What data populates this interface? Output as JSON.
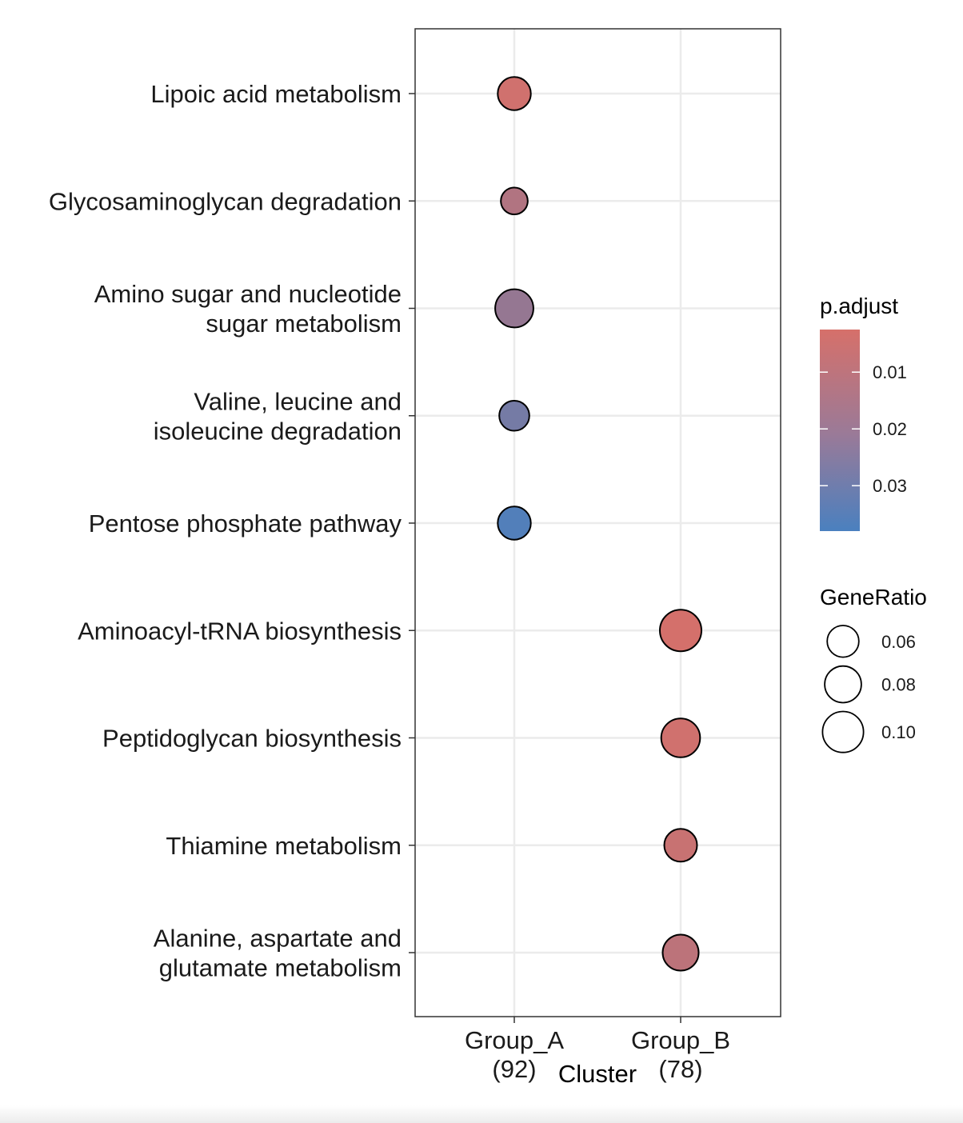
{
  "chart_data": {
    "type": "scatter",
    "xlabel": "Cluster",
    "ylabel": "",
    "clusters": [
      {
        "name": "Group_A",
        "count": "(92)"
      },
      {
        "name": "Group_B",
        "count": "(78)"
      }
    ],
    "categories": [
      "Lipoic acid metabolism",
      "Glycosaminoglycan degradation",
      "Amino sugar and nucleotide sugar metabolism",
      "Valine, leucine and isoleucine degradation",
      "Pentose phosphate pathway",
      "Aminoacyl-tRNA biosynthesis",
      "Peptidoglycan biosynthesis",
      "Thiamine metabolism",
      "Alanine, aspartate and glutamate metabolism"
    ],
    "category_labels": [
      [
        "Lipoic acid metabolism"
      ],
      [
        "Glycosaminoglycan degradation"
      ],
      [
        "Amino sugar and nucleotide",
        "sugar metabolism"
      ],
      [
        "Valine, leucine and",
        "isoleucine degradation"
      ],
      [
        "Pentose phosphate pathway"
      ],
      [
        "Aminoacyl-tRNA biosynthesis"
      ],
      [
        "Peptidoglycan biosynthesis"
      ],
      [
        "Thiamine metabolism"
      ],
      [
        "Alanine, aspartate and",
        "glutamate metabolism"
      ]
    ],
    "points": [
      {
        "category": "Lipoic acid metabolism",
        "cluster": "Group_A",
        "gene_ratio": 0.065,
        "p_adjust": 0.004
      },
      {
        "category": "Glycosaminoglycan degradation",
        "cluster": "Group_A",
        "gene_ratio": 0.043,
        "p_adjust": 0.012
      },
      {
        "category": "Amino sugar and nucleotide sugar metabolism",
        "cluster": "Group_A",
        "gene_ratio": 0.087,
        "p_adjust": 0.019
      },
      {
        "category": "Valine, leucine and isoleucine degradation",
        "cluster": "Group_A",
        "gene_ratio": 0.054,
        "p_adjust": 0.027
      },
      {
        "category": "Pentose phosphate pathway",
        "cluster": "Group_A",
        "gene_ratio": 0.065,
        "p_adjust": 0.036
      },
      {
        "category": "Aminoacyl-tRNA biosynthesis",
        "cluster": "Group_B",
        "gene_ratio": 0.103,
        "p_adjust": 0.003
      },
      {
        "category": "Peptidoglycan biosynthesis",
        "cluster": "Group_B",
        "gene_ratio": 0.09,
        "p_adjust": 0.004
      },
      {
        "category": "Thiamine metabolism",
        "cluster": "Group_B",
        "gene_ratio": 0.064,
        "p_adjust": 0.006
      },
      {
        "category": "Alanine, aspartate and glutamate metabolism",
        "cluster": "Group_B",
        "gene_ratio": 0.077,
        "p_adjust": 0.009
      }
    ],
    "color_legend": {
      "title": "p.adjust",
      "ticks": [
        0.01,
        0.02,
        0.03
      ],
      "tick_labels": [
        "0.01",
        "0.02",
        "0.03"
      ],
      "range": [
        0.0025,
        0.038
      ],
      "low_color": "#d6706a",
      "high_color": "#4a80bf"
    },
    "size_legend": {
      "title": "GeneRatio",
      "values": [
        0.06,
        0.08,
        0.1
      ],
      "labels": [
        "0.06",
        "0.08",
        "0.10"
      ]
    },
    "grid": true,
    "legend_position": "right"
  }
}
